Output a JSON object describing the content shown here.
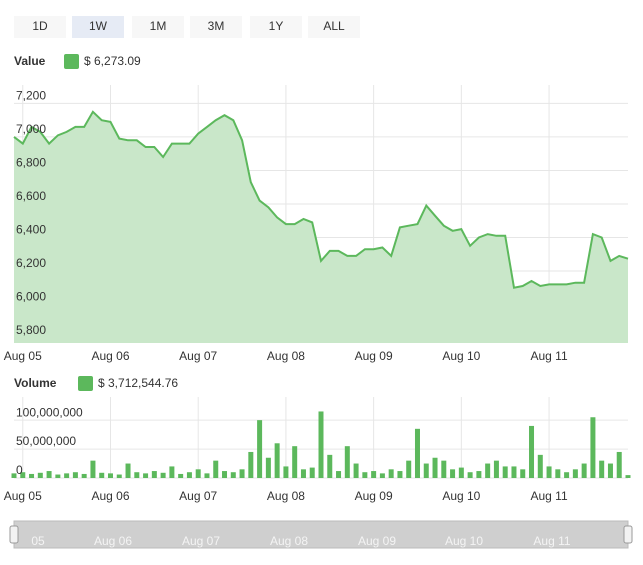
{
  "buttons": [
    "1D",
    "1W",
    "1M",
    "3M",
    "1Y",
    "ALL"
  ],
  "selected_button": "1W",
  "navigator_labels": [
    "05",
    "Aug 06",
    "Aug 07",
    "Aug 08",
    "Aug 09",
    "Aug 10",
    "Aug 11"
  ],
  "chart_data": [
    {
      "type": "area",
      "series": [
        {
          "name": "Value",
          "legend_value": "$ 6,273.09",
          "color": "#5cb85c",
          "fill": "#c9e7c9",
          "values": [
            7000,
            6960,
            7060,
            7030,
            6960,
            7010,
            7030,
            7060,
            7060,
            7150,
            7100,
            7090,
            6990,
            6980,
            6980,
            6940,
            6940,
            6880,
            6960,
            6960,
            6960,
            7020,
            7060,
            7100,
            7130,
            7100,
            6980,
            6730,
            6620,
            6580,
            6520,
            6480,
            6480,
            6510,
            6490,
            6260,
            6320,
            6320,
            6290,
            6290,
            6330,
            6330,
            6340,
            6290,
            6460,
            6470,
            6480,
            6590,
            6530,
            6470,
            6440,
            6450,
            6350,
            6400,
            6420,
            6410,
            6410,
            6100,
            6110,
            6140,
            6110,
            6120,
            6120,
            6120,
            6130,
            6130,
            6420,
            6400,
            6260,
            6290,
            6273.09
          ]
        }
      ],
      "x": [
        -0.1,
        0,
        0.1,
        0.2,
        0.3,
        0.4,
        0.5,
        0.6,
        0.7,
        0.8,
        0.9,
        1,
        1.1,
        1.2,
        1.3,
        1.4,
        1.5,
        1.6,
        1.7,
        1.8,
        1.9,
        2,
        2.1,
        2.2,
        2.3,
        2.4,
        2.5,
        2.6,
        2.7,
        2.8,
        2.9,
        3,
        3.1,
        3.2,
        3.3,
        3.4,
        3.5,
        3.6,
        3.7,
        3.8,
        3.9,
        4,
        4.1,
        4.2,
        4.3,
        4.4,
        4.5,
        4.6,
        4.7,
        4.8,
        4.9,
        5,
        5.1,
        5.2,
        5.3,
        5.4,
        5.5,
        5.6,
        5.7,
        5.8,
        5.9,
        6,
        6.1,
        6.2,
        6.3,
        6.4,
        6.5,
        6.6,
        6.7,
        6.8,
        6.9
      ],
      "xlim": [
        -0.1,
        6.9
      ],
      "xticks": [
        {
          "value": 0,
          "label": "Aug 05"
        },
        {
          "value": 1,
          "label": "Aug 06"
        },
        {
          "value": 2,
          "label": "Aug 07"
        },
        {
          "value": 3,
          "label": "Aug 08"
        },
        {
          "value": 4,
          "label": "Aug 09"
        },
        {
          "value": 5,
          "label": "Aug 10"
        },
        {
          "value": 6,
          "label": "Aug 11"
        }
      ],
      "ylim": [
        5770,
        7310
      ],
      "yticks": [
        {
          "value": 5800,
          "label": "5,800"
        },
        {
          "value": 6000,
          "label": "6,000"
        },
        {
          "value": 6200,
          "label": "6,200"
        },
        {
          "value": 6400,
          "label": "6,400"
        },
        {
          "value": 6600,
          "label": "6,600"
        },
        {
          "value": 6800,
          "label": "6,800"
        },
        {
          "value": 7000,
          "label": "7,000"
        },
        {
          "value": 7200,
          "label": "7,200"
        }
      ],
      "grid": true
    },
    {
      "type": "bar",
      "series": [
        {
          "name": "Volume",
          "legend_value": "$ 3,712,544.76",
          "color": "#5cb85c",
          "values": [
            8000000,
            10000000,
            7000000,
            9000000,
            12000000,
            6000000,
            8000000,
            10000000,
            7000000,
            30000000,
            9000000,
            8000000,
            6000000,
            25000000,
            10000000,
            8000000,
            12000000,
            9000000,
            20000000,
            7000000,
            10000000,
            15000000,
            8000000,
            30000000,
            12000000,
            10000000,
            15000000,
            45000000,
            100000000,
            35000000,
            60000000,
            20000000,
            55000000,
            15000000,
            18000000,
            115000000,
            40000000,
            12000000,
            55000000,
            25000000,
            10000000,
            12000000,
            8000000,
            15000000,
            12000000,
            30000000,
            85000000,
            25000000,
            35000000,
            30000000,
            15000000,
            18000000,
            10000000,
            12000000,
            25000000,
            30000000,
            20000000,
            20000000,
            15000000,
            90000000,
            40000000,
            20000000,
            15000000,
            10000000,
            15000000,
            25000000,
            105000000,
            30000000,
            25000000,
            45000000,
            5000000
          ]
        }
      ],
      "x": [
        -0.1,
        0,
        0.1,
        0.2,
        0.3,
        0.4,
        0.5,
        0.6,
        0.7,
        0.8,
        0.9,
        1,
        1.1,
        1.2,
        1.3,
        1.4,
        1.5,
        1.6,
        1.7,
        1.8,
        1.9,
        2,
        2.1,
        2.2,
        2.3,
        2.4,
        2.5,
        2.6,
        2.7,
        2.8,
        2.9,
        3,
        3.1,
        3.2,
        3.3,
        3.4,
        3.5,
        3.6,
        3.7,
        3.8,
        3.9,
        4,
        4.1,
        4.2,
        4.3,
        4.4,
        4.5,
        4.6,
        4.7,
        4.8,
        4.9,
        5,
        5.1,
        5.2,
        5.3,
        5.4,
        5.5,
        5.6,
        5.7,
        5.8,
        5.9,
        6,
        6.1,
        6.2,
        6.3,
        6.4,
        6.5,
        6.6,
        6.7,
        6.8,
        6.9
      ],
      "xlim": [
        -0.1,
        6.9
      ],
      "xticks": [
        {
          "value": 0,
          "label": "Aug 05"
        },
        {
          "value": 1,
          "label": "Aug 06"
        },
        {
          "value": 2,
          "label": "Aug 07"
        },
        {
          "value": 3,
          "label": "Aug 08"
        },
        {
          "value": 4,
          "label": "Aug 09"
        },
        {
          "value": 5,
          "label": "Aug 10"
        },
        {
          "value": 6,
          "label": "Aug 11"
        }
      ],
      "ylim": [
        0,
        140000000
      ],
      "yticks": [
        0,
        {
          "value": 50000000,
          "label": "50,000,000"
        },
        {
          "value": 100000000,
          "label": "100,000,000"
        }
      ],
      "grid": true
    }
  ]
}
